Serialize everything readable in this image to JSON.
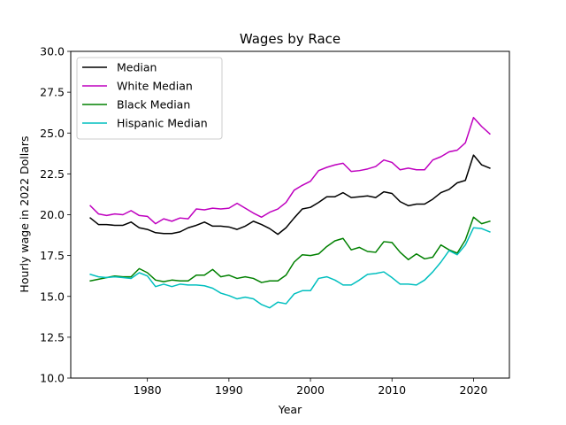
{
  "chart_data": {
    "type": "line",
    "title": "Wages by Race",
    "xlabel": "Year",
    "ylabel": "Hourly wage in 2022 Dollars",
    "xlim": [
      1970.6,
      2024.4
    ],
    "ylim": [
      10.0,
      30.0
    ],
    "x_ticks": [
      1980,
      1990,
      2000,
      2010,
      2020
    ],
    "y_ticks": [
      10.0,
      12.5,
      15.0,
      17.5,
      20.0,
      22.5,
      25.0,
      27.5,
      30.0
    ],
    "x_tick_labels": [
      "1980",
      "1990",
      "2000",
      "2010",
      "2020"
    ],
    "y_tick_labels": [
      "10.0",
      "12.5",
      "15.0",
      "17.5",
      "20.0",
      "22.5",
      "25.0",
      "27.5",
      "30.0"
    ],
    "grid": false,
    "legend_position": "top-left",
    "x": [
      1973,
      1974,
      1975,
      1976,
      1977,
      1978,
      1979,
      1980,
      1981,
      1982,
      1983,
      1984,
      1985,
      1986,
      1987,
      1988,
      1989,
      1990,
      1991,
      1992,
      1993,
      1994,
      1995,
      1996,
      1997,
      1998,
      1999,
      2000,
      2001,
      2002,
      2003,
      2004,
      2005,
      2006,
      2007,
      2008,
      2009,
      2010,
      2011,
      2012,
      2013,
      2014,
      2015,
      2016,
      2017,
      2018,
      2019,
      2020,
      2021,
      2022
    ],
    "series": [
      {
        "name": "Median",
        "color": "#000000",
        "values": [
          19.8,
          19.4,
          19.4,
          19.35,
          19.35,
          19.55,
          19.2,
          19.1,
          18.9,
          18.85,
          18.85,
          18.95,
          19.2,
          19.35,
          19.55,
          19.3,
          19.3,
          19.25,
          19.1,
          19.3,
          19.6,
          19.4,
          19.15,
          18.8,
          19.2,
          19.8,
          20.35,
          20.45,
          20.75,
          21.1,
          21.1,
          21.35,
          21.05,
          21.1,
          21.15,
          21.05,
          21.4,
          21.3,
          20.8,
          20.55,
          20.65,
          20.65,
          20.95,
          21.35,
          21.55,
          21.95,
          22.1,
          23.65,
          23.05,
          22.85
        ]
      },
      {
        "name": "White Median",
        "color": "#bf00bf",
        "values": [
          20.55,
          20.05,
          19.95,
          20.05,
          20.0,
          20.25,
          19.95,
          19.9,
          19.45,
          19.75,
          19.6,
          19.8,
          19.75,
          20.35,
          20.3,
          20.4,
          20.35,
          20.4,
          20.7,
          20.4,
          20.1,
          19.85,
          20.15,
          20.35,
          20.75,
          21.5,
          21.8,
          22.05,
          22.7,
          22.9,
          23.05,
          23.15,
          22.65,
          22.7,
          22.8,
          22.95,
          23.35,
          23.2,
          22.75,
          22.85,
          22.75,
          22.75,
          23.35,
          23.55,
          23.85,
          23.95,
          24.4,
          25.95,
          25.4,
          24.95
        ]
      },
      {
        "name": "Black Median",
        "color": "#008000",
        "values": [
          15.95,
          16.05,
          16.15,
          16.25,
          16.2,
          16.2,
          16.7,
          16.45,
          16.0,
          15.9,
          16.0,
          15.95,
          15.95,
          16.3,
          16.3,
          16.65,
          16.2,
          16.3,
          16.1,
          16.2,
          16.1,
          15.85,
          15.95,
          15.95,
          16.3,
          17.1,
          17.55,
          17.5,
          17.6,
          18.05,
          18.4,
          18.55,
          17.85,
          18.0,
          17.75,
          17.7,
          18.35,
          18.3,
          17.7,
          17.25,
          17.6,
          17.3,
          17.4,
          18.15,
          17.85,
          17.65,
          18.45,
          19.85,
          19.45,
          19.6
        ]
      },
      {
        "name": "Hispanic Median",
        "color": "#00bfbf",
        "values": [
          16.35,
          16.2,
          16.15,
          16.2,
          16.15,
          16.1,
          16.45,
          16.25,
          15.6,
          15.75,
          15.6,
          15.75,
          15.7,
          15.7,
          15.65,
          15.5,
          15.2,
          15.05,
          14.85,
          14.95,
          14.85,
          14.5,
          14.3,
          14.65,
          14.55,
          15.15,
          15.35,
          15.35,
          16.1,
          16.2,
          16.0,
          15.7,
          15.7,
          16.0,
          16.35,
          16.4,
          16.5,
          16.15,
          15.75,
          15.75,
          15.7,
          16.0,
          16.5,
          17.1,
          17.8,
          17.55,
          18.15,
          19.2,
          19.15,
          18.95
        ]
      }
    ]
  }
}
